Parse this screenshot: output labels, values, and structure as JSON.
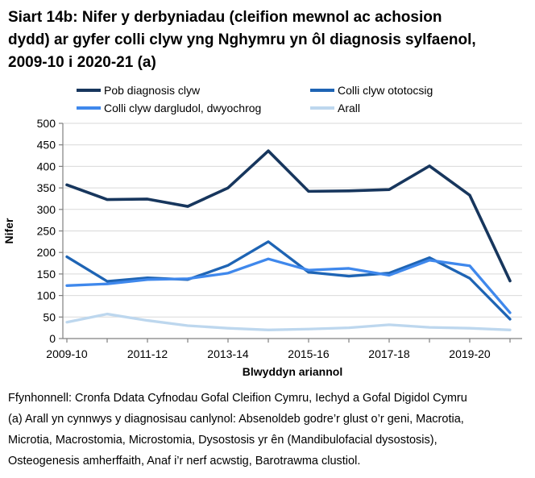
{
  "chart_data": {
    "type": "line",
    "title": "Siart 14b: Nifer y derbyniadau (cleifion mewnol ac achosion dydd) ar gyfer colli clyw yng Nghymru yn ôl diagnosis sylfaenol, 2009-10 i 2020-21 (a)",
    "xlabel": "Blwyddyn ariannol",
    "ylabel": "Nifer",
    "ylim": [
      0,
      500
    ],
    "y_tick_step": 50,
    "grid": "horizontal",
    "legend_position": "top",
    "x": [
      "2009-10",
      "2010-11",
      "2011-12",
      "2012-13",
      "2013-14",
      "2014-15",
      "2015-16",
      "2016-17",
      "2017-18",
      "2018-19",
      "2019-20",
      "2020-21"
    ],
    "x_labels_shown_every": 2,
    "series": [
      {
        "name": "Pob diagnosis clyw",
        "color": "#17365D",
        "values": [
          357,
          323,
          324,
          307,
          350,
          436,
          342,
          343,
          346,
          401,
          333,
          134
        ]
      },
      {
        "name": "Colli clyw ototocsig",
        "color": "#1E64B4",
        "values": [
          190,
          133,
          141,
          137,
          170,
          225,
          154,
          145,
          152,
          188,
          140,
          45
        ]
      },
      {
        "name": "Colli clyw dargludol, dwyochrog",
        "color": "#3F88EC",
        "values": [
          123,
          127,
          137,
          139,
          152,
          185,
          159,
          163,
          147,
          182,
          169,
          60
        ]
      },
      {
        "name": "Arall",
        "color": "#BDD7EE",
        "values": [
          38,
          57,
          42,
          30,
          24,
          20,
          22,
          25,
          32,
          26,
          24,
          20
        ]
      }
    ],
    "colors": {
      "gridline": "#D9D9D9",
      "axis": "#808080"
    }
  },
  "footnotes": {
    "source": "Ffynhonnell: Cronfa Ddata Cyfnodau Gofal Cleifion Cymru, Iechyd a Gofal Digidol Cymru",
    "note": "(a) Arall yn cynnwys y diagnosisau canlynol: Absenoldeb godre’r glust o’r geni, Macrotia, Microtia, Macrostomia, Microstomia, Dysostosis yr ên (Mandibulofacial dysostosis), Osteogenesis amherffaith, Anaf i’r nerf acwstig, Barotrawma clustiol."
  }
}
